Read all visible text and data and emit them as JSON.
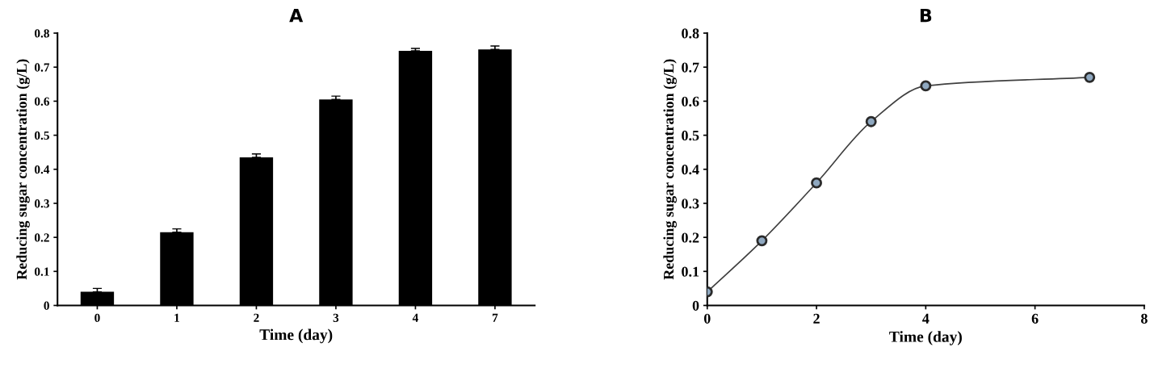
{
  "chart_data": [
    {
      "type": "bar",
      "title": "A",
      "xlabel": "Time (day)",
      "ylabel": "Reducing sugar concentration (g/L)",
      "categories": [
        "0",
        "1",
        "2",
        "3",
        "4",
        "7"
      ],
      "values": [
        0.04,
        0.215,
        0.435,
        0.605,
        0.748,
        0.752
      ],
      "errors": [
        0.01,
        0.01,
        0.01,
        0.01,
        0.007,
        0.01
      ],
      "color": "#000000",
      "ylim": [
        0,
        0.8
      ],
      "yticks": [
        {
          "value": 0,
          "label": "0"
        },
        0.1,
        0.2,
        0.3,
        0.4,
        0.5,
        0.6,
        0.7,
        0.8
      ],
      "grid": false,
      "legend": false
    },
    {
      "type": "line",
      "title": "B",
      "xlabel": "Time (day)",
      "ylabel": "Reducing sugar concentration (g/L)",
      "series": [
        {
          "color": "#404040",
          "x": [
            0,
            1,
            2,
            3,
            4,
            7
          ],
          "values": [
            0.04,
            0.19,
            0.36,
            0.54,
            0.645,
            0.67
          ]
        }
      ],
      "marker": "circle",
      "line_style": "solid",
      "xlim": [
        0,
        8
      ],
      "xticks": [
        0,
        2,
        4,
        6,
        8
      ],
      "ylim": [
        0,
        0.8
      ],
      "yticks": [
        {
          "value": 0,
          "label": "0"
        },
        0.1,
        0.2,
        0.3,
        0.4,
        0.5,
        0.6,
        0.7,
        0.8
      ],
      "grid": false,
      "legend": false
    }
  ]
}
